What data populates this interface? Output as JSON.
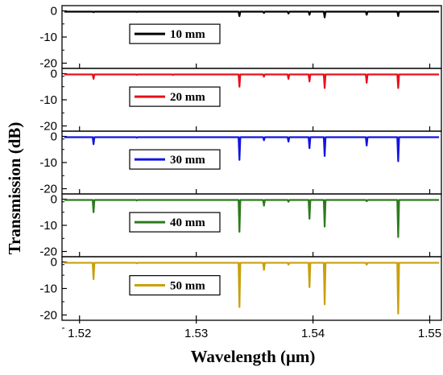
{
  "chart_data": {
    "type": "line",
    "xlabel": "Wavelength (μm)",
    "ylabel": "Transmission (dB)",
    "xlim": [
      1.5185,
      1.551
    ],
    "ylim": [
      -22,
      2
    ],
    "x_ticks": [
      1.52,
      1.53,
      1.54,
      1.55
    ],
    "x_tick_labels": [
      "1.52",
      "1.53",
      "1.54",
      "1.55"
    ],
    "y_ticks": [
      0,
      -10,
      -20
    ],
    "y_tick_labels": [
      "0",
      "-10",
      "-20"
    ],
    "panels": [
      {
        "series": [
          {
            "name": "10 mm",
            "color": "#000000",
            "baseline": -0.3,
            "dips": [
              {
                "x": 1.5212,
                "y": -0.5
              },
              {
                "x": 1.5249,
                "y": -0.4
              },
              {
                "x": 1.5337,
                "y": -2.0
              },
              {
                "x": 1.5358,
                "y": -0.8
              },
              {
                "x": 1.5379,
                "y": -1.0
              },
              {
                "x": 1.5397,
                "y": -1.5
              },
              {
                "x": 1.541,
                "y": -2.5
              },
              {
                "x": 1.5446,
                "y": -1.5
              },
              {
                "x": 1.5473,
                "y": -2.0
              }
            ]
          }
        ]
      },
      {
        "series": [
          {
            "name": "20 mm",
            "color": "#e8101c",
            "baseline": -0.3,
            "dips": [
              {
                "x": 1.5212,
                "y": -2.0
              },
              {
                "x": 1.5249,
                "y": -0.5
              },
              {
                "x": 1.528,
                "y": -0.5
              },
              {
                "x": 1.5337,
                "y": -5.0
              },
              {
                "x": 1.5358,
                "y": -1.2
              },
              {
                "x": 1.5379,
                "y": -2.0
              },
              {
                "x": 1.5397,
                "y": -3.0
              },
              {
                "x": 1.541,
                "y": -5.5
              },
              {
                "x": 1.5446,
                "y": -3.5
              },
              {
                "x": 1.5473,
                "y": -5.5
              }
            ]
          }
        ]
      },
      {
        "series": [
          {
            "name": "30 mm",
            "color": "#1515e0",
            "baseline": -0.3,
            "dips": [
              {
                "x": 1.5212,
                "y": -3.0
              },
              {
                "x": 1.5249,
                "y": -0.5
              },
              {
                "x": 1.5337,
                "y": -9.0
              },
              {
                "x": 1.5358,
                "y": -1.5
              },
              {
                "x": 1.5379,
                "y": -2.0
              },
              {
                "x": 1.5397,
                "y": -4.5
              },
              {
                "x": 1.541,
                "y": -7.5
              },
              {
                "x": 1.5446,
                "y": -3.5
              },
              {
                "x": 1.5473,
                "y": -9.5
              }
            ]
          }
        ]
      },
      {
        "series": [
          {
            "name": "40 mm",
            "color": "#2e7a1e",
            "baseline": -0.3,
            "dips": [
              {
                "x": 1.5212,
                "y": -5.0
              },
              {
                "x": 1.5249,
                "y": -0.5
              },
              {
                "x": 1.5337,
                "y": -12.5
              },
              {
                "x": 1.5358,
                "y": -2.5
              },
              {
                "x": 1.5379,
                "y": -1.0
              },
              {
                "x": 1.5397,
                "y": -7.5
              },
              {
                "x": 1.541,
                "y": -10.5
              },
              {
                "x": 1.5446,
                "y": -0.8
              },
              {
                "x": 1.5473,
                "y": -14.5
              }
            ]
          }
        ]
      },
      {
        "series": [
          {
            "name": "50 mm",
            "color": "#c9a10c",
            "baseline": -0.3,
            "dips": [
              {
                "x": 1.5212,
                "y": -6.5
              },
              {
                "x": 1.5249,
                "y": -0.5
              },
              {
                "x": 1.5337,
                "y": -17.0
              },
              {
                "x": 1.5358,
                "y": -3.0
              },
              {
                "x": 1.5379,
                "y": -1.0
              },
              {
                "x": 1.5397,
                "y": -9.5
              },
              {
                "x": 1.541,
                "y": -16.0
              },
              {
                "x": 1.5446,
                "y": -1.0
              },
              {
                "x": 1.5473,
                "y": -19.5
              }
            ]
          }
        ]
      }
    ],
    "grid": false,
    "legend_placement": "center-left"
  }
}
